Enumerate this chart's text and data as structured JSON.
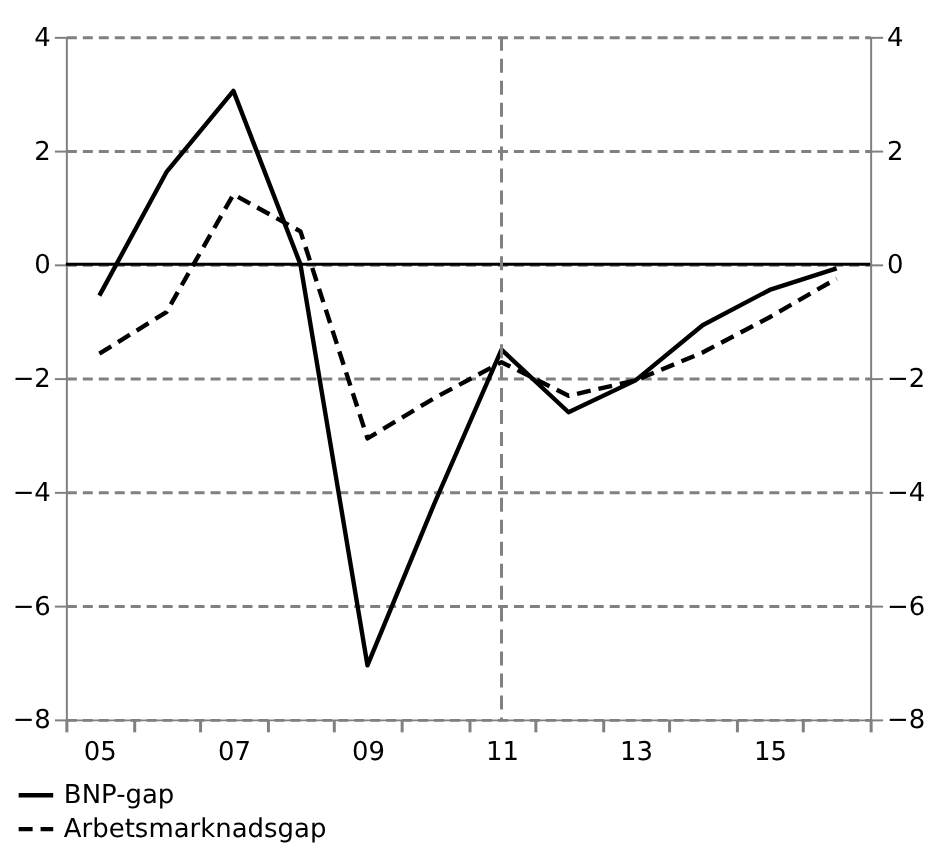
{
  "chart_data": {
    "type": "line",
    "categories": [
      "05",
      null,
      "07",
      null,
      "09",
      null,
      "11",
      null,
      "13",
      null,
      "15",
      null
    ],
    "ylim": [
      -8,
      4
    ],
    "yticks": [
      -8,
      -6,
      -4,
      -2,
      0,
      2,
      4
    ],
    "y2lim": [
      -8,
      4
    ],
    "y2ticks": [
      -8,
      -6,
      -4,
      -2,
      0,
      2,
      4
    ],
    "grid": "y",
    "legend": "bottom left",
    "ref_lines": [
      {
        "axis": "y",
        "value": 0,
        "color": "#000000",
        "line_style": "solid"
      },
      {
        "axis": "x",
        "value": "11",
        "color": "#808080",
        "line_style": "dashed"
      }
    ],
    "series": [
      {
        "name": "BNP-gap",
        "color": "#000000",
        "line_style": "solid",
        "values": [
          -0.55,
          1.62,
          3.05,
          0,
          -7.05,
          -4.2,
          -1.5,
          -2.6,
          -2.04,
          -1.07,
          -0.45,
          -0.07
        ]
      },
      {
        "name": "Arbetsmarknadsgap",
        "color": "#000000",
        "line_style": "dashed",
        "values": [
          -1.57,
          -0.84,
          1.23,
          0.58,
          -3.06,
          -2.35,
          -1.72,
          -2.31,
          -2.04,
          -1.55,
          -0.93,
          -0.25
        ]
      }
    ]
  }
}
